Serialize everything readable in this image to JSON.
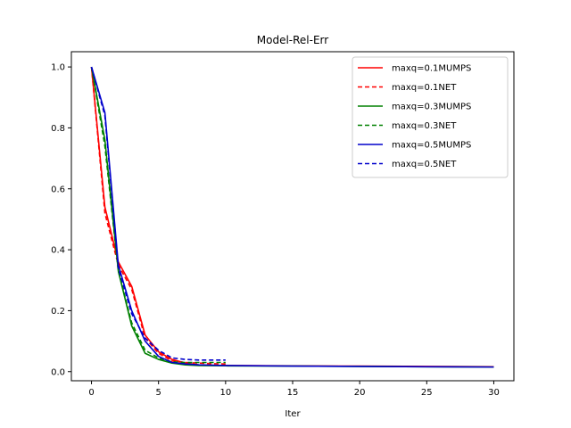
{
  "chart_data": {
    "type": "line",
    "title": "Model-Rel-Err",
    "xlabel": "Iter",
    "ylabel": "",
    "xlim": [
      -1.5,
      31.5
    ],
    "ylim": [
      -0.03,
      1.05
    ],
    "xticks": [
      0,
      5,
      10,
      15,
      20,
      25,
      30
    ],
    "yticks": [
      0.0,
      0.2,
      0.4,
      0.6,
      0.8,
      1.0
    ],
    "xtick_labels": [
      "0",
      "5",
      "10",
      "15",
      "20",
      "25",
      "30"
    ],
    "ytick_labels": [
      "0.0",
      "0.2",
      "0.4",
      "0.6",
      "0.8",
      "1.0"
    ],
    "grid": false,
    "legend_position": "top-right",
    "series": [
      {
        "name": "maxq=0.1MUMPS",
        "color": "#ff0000",
        "style": "solid",
        "x": [
          0,
          1,
          2,
          3,
          4,
          5,
          6,
          7,
          8,
          10,
          15,
          20,
          25,
          30
        ],
        "y": [
          1.0,
          0.54,
          0.36,
          0.28,
          0.12,
          0.065,
          0.04,
          0.028,
          0.022,
          0.02,
          0.019,
          0.018,
          0.017,
          0.016
        ]
      },
      {
        "name": "maxq=0.1NET",
        "color": "#ff0000",
        "style": "dashed",
        "x": [
          0,
          1,
          2,
          3,
          4,
          5,
          6,
          7,
          8,
          9,
          10
        ],
        "y": [
          1.0,
          0.52,
          0.35,
          0.27,
          0.11,
          0.06,
          0.035,
          0.03,
          0.028,
          0.026,
          0.025
        ]
      },
      {
        "name": "maxq=0.3MUMPS",
        "color": "#008000",
        "style": "solid",
        "x": [
          0,
          1,
          2,
          3,
          4,
          5,
          6,
          7,
          8,
          10,
          15,
          20,
          25,
          30
        ],
        "y": [
          1.0,
          0.76,
          0.33,
          0.15,
          0.06,
          0.04,
          0.028,
          0.022,
          0.02,
          0.019,
          0.018,
          0.017,
          0.016,
          0.015
        ]
      },
      {
        "name": "maxq=0.3NET",
        "color": "#008000",
        "style": "dashed",
        "x": [
          0,
          1,
          2,
          3,
          4,
          5,
          6,
          7,
          8,
          9,
          10
        ],
        "y": [
          1.0,
          0.74,
          0.33,
          0.16,
          0.07,
          0.045,
          0.032,
          0.03,
          0.03,
          0.03,
          0.03
        ]
      },
      {
        "name": "maxq=0.5MUMPS",
        "color": "#0000cc",
        "style": "solid",
        "x": [
          0,
          1,
          2,
          3,
          4,
          5,
          6,
          7,
          8,
          10,
          15,
          20,
          25,
          30
        ],
        "y": [
          1.0,
          0.85,
          0.35,
          0.2,
          0.1,
          0.05,
          0.03,
          0.025,
          0.022,
          0.02,
          0.018,
          0.017,
          0.016,
          0.015
        ]
      },
      {
        "name": "maxq=0.5NET",
        "color": "#0000cc",
        "style": "dashed",
        "x": [
          0,
          1,
          2,
          3,
          4,
          5,
          6,
          7,
          8,
          9,
          10
        ],
        "y": [
          1.0,
          0.84,
          0.34,
          0.19,
          0.11,
          0.07,
          0.045,
          0.04,
          0.038,
          0.038,
          0.038
        ]
      }
    ]
  }
}
